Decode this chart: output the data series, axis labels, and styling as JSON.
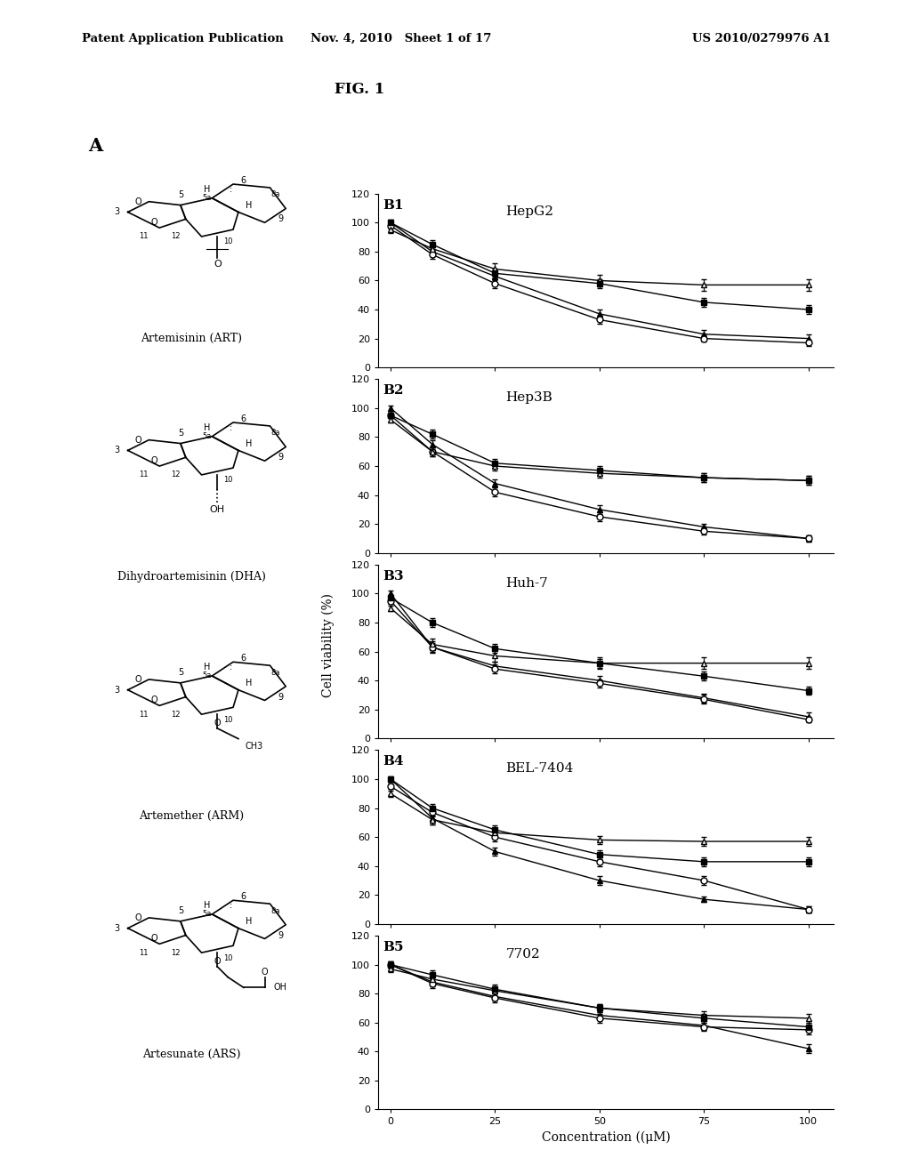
{
  "header_left": "Patent Application Publication",
  "header_mid": "Nov. 4, 2010   Sheet 1 of 17",
  "header_right": "US 2010/0279976 A1",
  "fig_label": "FIG. 1",
  "panel_A_label": "A",
  "concentration": [
    0,
    10,
    25,
    50,
    75,
    100
  ],
  "panels": [
    {
      "label": "B1",
      "title": "HepG2",
      "ART": [
        100,
        80,
        63,
        37,
        23,
        20
      ],
      "DHA": [
        98,
        78,
        58,
        33,
        20,
        17
      ],
      "ARM": [
        95,
        82,
        68,
        60,
        57,
        57
      ],
      "ARS": [
        100,
        85,
        65,
        58,
        45,
        40
      ],
      "ART_err": [
        2,
        3,
        3,
        3,
        3,
        3
      ],
      "DHA_err": [
        2,
        3,
        3,
        3,
        2,
        2
      ],
      "ARM_err": [
        2,
        3,
        4,
        4,
        4,
        4
      ],
      "ARS_err": [
        2,
        3,
        3,
        3,
        3,
        3
      ]
    },
    {
      "label": "B2",
      "title": "Hep3B",
      "ART": [
        100,
        75,
        48,
        30,
        18,
        10
      ],
      "DHA": [
        95,
        70,
        42,
        25,
        15,
        10
      ],
      "ARM": [
        92,
        70,
        60,
        55,
        52,
        50
      ],
      "ARS": [
        95,
        82,
        62,
        57,
        52,
        50
      ],
      "ART_err": [
        2,
        3,
        3,
        3,
        2,
        2
      ],
      "DHA_err": [
        2,
        3,
        3,
        3,
        2,
        2
      ],
      "ARM_err": [
        2,
        3,
        3,
        3,
        3,
        3
      ],
      "ARS_err": [
        2,
        3,
        3,
        3,
        3,
        3
      ]
    },
    {
      "label": "B3",
      "title": "Huh-7",
      "ART": [
        100,
        63,
        50,
        40,
        28,
        15
      ],
      "DHA": [
        95,
        63,
        48,
        38,
        27,
        13
      ],
      "ARM": [
        90,
        65,
        57,
        52,
        52,
        52
      ],
      "ARS": [
        97,
        80,
        62,
        52,
        43,
        33
      ],
      "ART_err": [
        2,
        4,
        3,
        3,
        3,
        3
      ],
      "DHA_err": [
        2,
        3,
        3,
        3,
        3,
        2
      ],
      "ARM_err": [
        2,
        4,
        4,
        4,
        4,
        4
      ],
      "ARS_err": [
        2,
        3,
        3,
        3,
        3,
        3
      ]
    },
    {
      "label": "B4",
      "title": "BEL-7404",
      "ART": [
        100,
        73,
        50,
        30,
        17,
        10
      ],
      "DHA": [
        95,
        77,
        60,
        43,
        30,
        10
      ],
      "ARM": [
        90,
        72,
        63,
        58,
        57,
        57
      ],
      "ARS": [
        100,
        80,
        65,
        48,
        43,
        43
      ],
      "ART_err": [
        2,
        4,
        3,
        3,
        2,
        2
      ],
      "DHA_err": [
        2,
        3,
        3,
        3,
        3,
        2
      ],
      "ARM_err": [
        2,
        3,
        3,
        3,
        3,
        3
      ],
      "ARS_err": [
        2,
        3,
        3,
        3,
        3,
        3
      ]
    },
    {
      "label": "B5",
      "title": "7702",
      "ART": [
        100,
        88,
        78,
        65,
        58,
        42
      ],
      "DHA": [
        100,
        87,
        77,
        63,
        57,
        55
      ],
      "ARM": [
        97,
        90,
        82,
        70,
        65,
        63
      ],
      "ARS": [
        100,
        93,
        83,
        70,
        63,
        57
      ],
      "ART_err": [
        2,
        3,
        3,
        3,
        3,
        3
      ],
      "DHA_err": [
        2,
        3,
        3,
        3,
        3,
        3
      ],
      "ARM_err": [
        2,
        3,
        3,
        3,
        3,
        3
      ],
      "ARS_err": [
        2,
        3,
        3,
        3,
        3,
        3
      ]
    }
  ],
  "ylabel": "Cell viability (%)",
  "xlabel": "Concentration ((μM)",
  "ylim": [
    0,
    120
  ],
  "yticks": [
    0,
    20,
    40,
    60,
    80,
    100,
    120
  ],
  "xticks": [
    0,
    25,
    50,
    75,
    100
  ],
  "compound_names": [
    "Artemisinin (ART)",
    "Dihydroartemisinin (DHA)",
    "Artemether (ARM)",
    "Artesunate (ARS)"
  ],
  "bg_color": "#ffffff"
}
